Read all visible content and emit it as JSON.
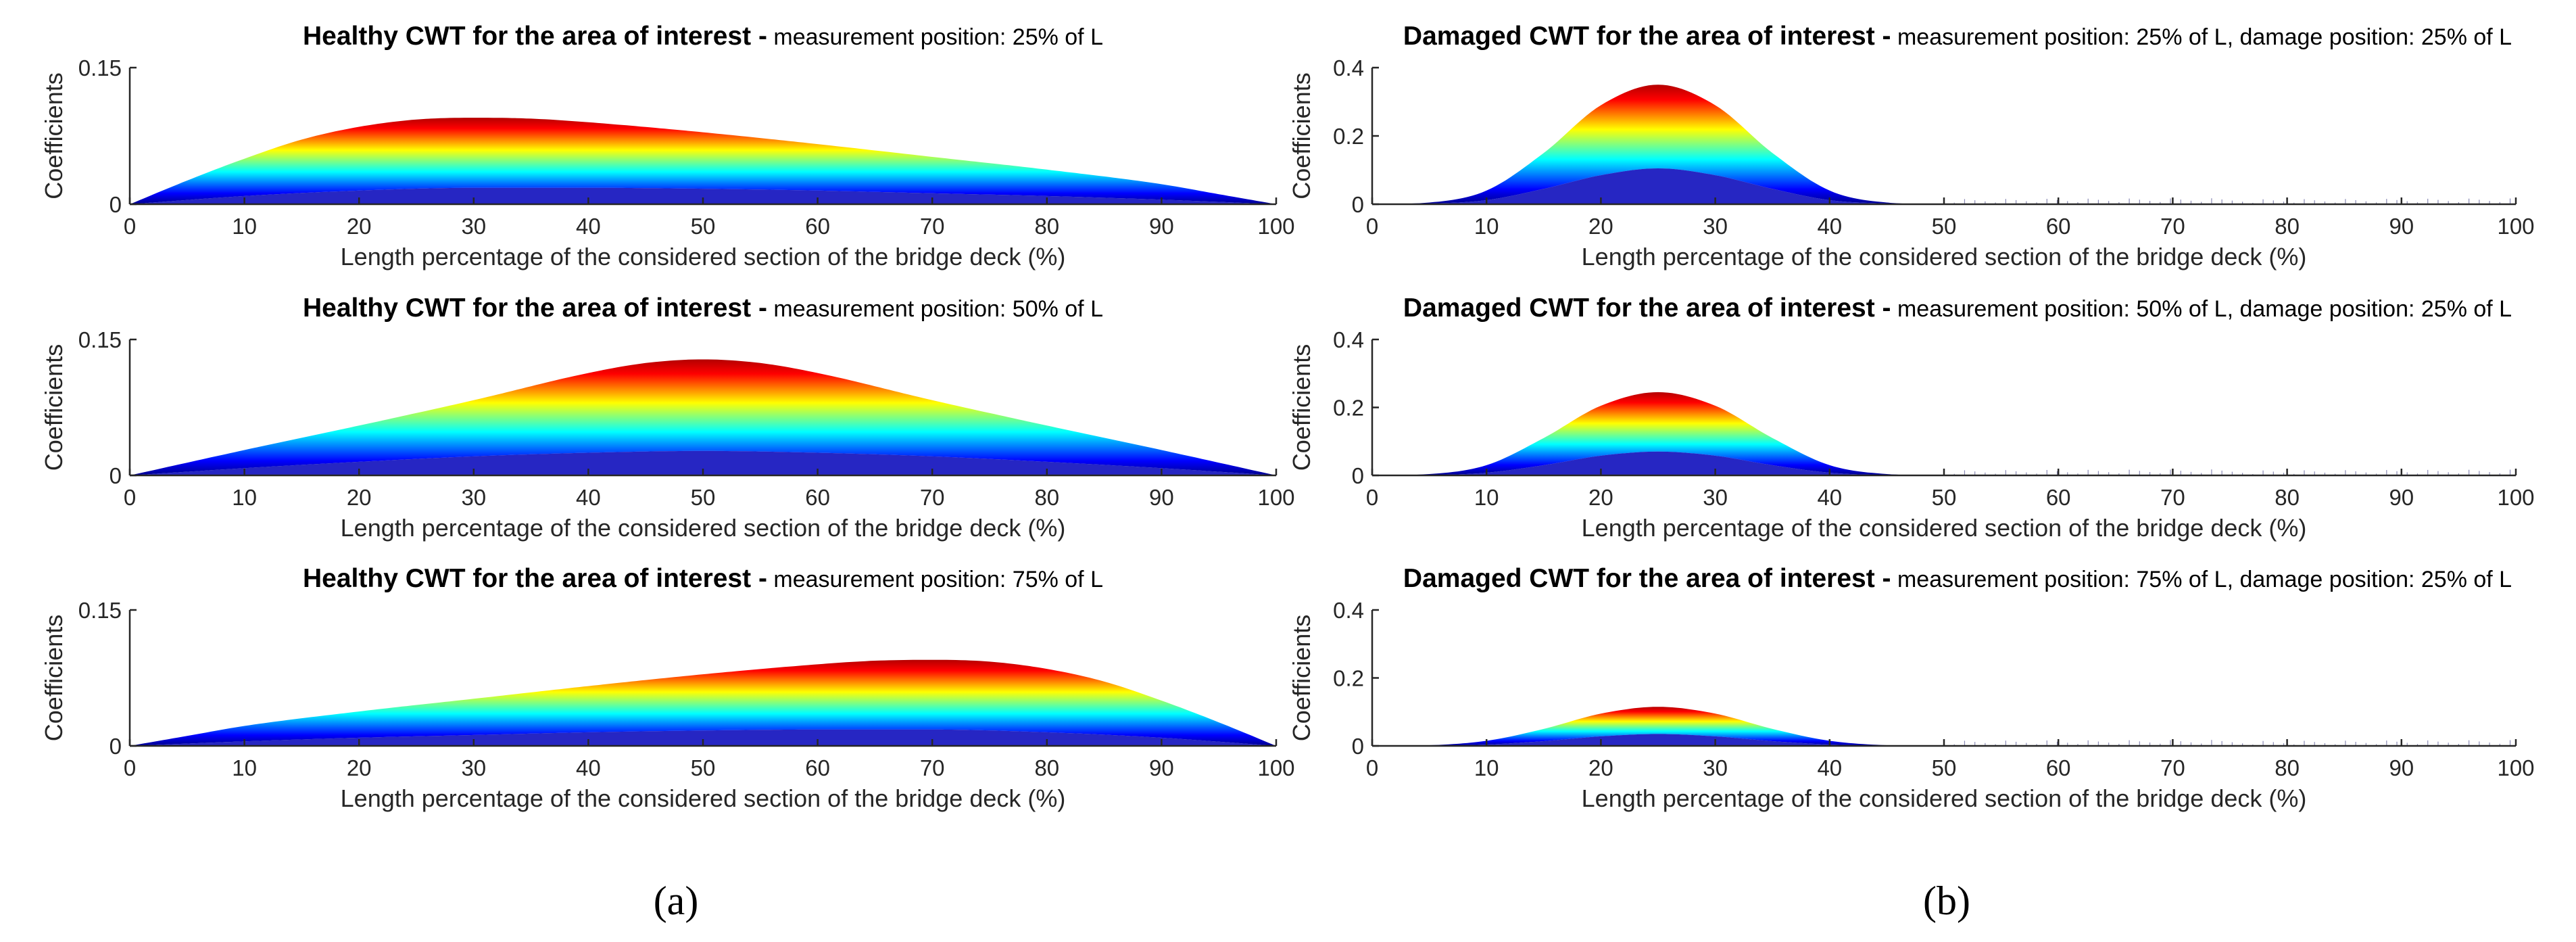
{
  "panel_labels": {
    "a": "(a)",
    "b": "(b)"
  },
  "colors": {
    "colormap": [
      "#00008f",
      "#0000ff",
      "#0080ff",
      "#00ffff",
      "#80ff80",
      "#ffff00",
      "#ff8000",
      "#ff0000",
      "#b40000"
    ],
    "axis": "#262626"
  },
  "chart_data": [
    {
      "id": "healthy-25",
      "type": "area",
      "title": "Healthy CWT for the area of interest -",
      "subtitle": "measurement position: 25% of L",
      "xlabel": "Length percentage of the considered section of the bridge deck (%)",
      "ylabel": "Coefficients",
      "xlim": [
        0,
        100
      ],
      "ylim": [
        0,
        0.15
      ],
      "xticks": [
        0,
        10,
        20,
        30,
        40,
        50,
        60,
        70,
        80,
        90,
        100
      ],
      "xtick_labels": [
        "0",
        "10",
        "20",
        "30",
        "40",
        "50",
        "60",
        "70",
        "80",
        "90",
        "100"
      ],
      "yticks": [
        0,
        0.15
      ],
      "ytick_labels": [
        "0",
        "0.15"
      ],
      "series": [
        {
          "name": "upper envelope",
          "x": [
            0,
            5,
            10,
            15,
            20,
            25,
            30,
            35,
            40,
            50,
            60,
            70,
            80,
            90,
            95,
            100
          ],
          "values": [
            0,
            0.026,
            0.05,
            0.071,
            0.085,
            0.093,
            0.095,
            0.094,
            0.09,
            0.079,
            0.066,
            0.052,
            0.038,
            0.022,
            0.011,
            0
          ]
        },
        {
          "name": "lower envelope",
          "x": [
            0,
            10,
            20,
            30,
            40,
            50,
            60,
            70,
            80,
            90,
            100
          ],
          "values": [
            0,
            0.009,
            0.015,
            0.018,
            0.018,
            0.017,
            0.015,
            0.012,
            0.009,
            0.005,
            0
          ]
        }
      ]
    },
    {
      "id": "healthy-50",
      "type": "area",
      "title": "Healthy CWT for the area of interest -",
      "subtitle": "measurement position: 50% of L",
      "xlabel": "Length percentage of the considered section of the bridge deck (%)",
      "ylabel": "Coefficients",
      "xlim": [
        0,
        100
      ],
      "ylim": [
        0,
        0.15
      ],
      "xticks": [
        0,
        10,
        20,
        30,
        40,
        50,
        60,
        70,
        80,
        90,
        100
      ],
      "xtick_labels": [
        "0",
        "10",
        "20",
        "30",
        "40",
        "50",
        "60",
        "70",
        "80",
        "90",
        "100"
      ],
      "yticks": [
        0,
        0.15
      ],
      "ytick_labels": [
        "0",
        "0.15"
      ],
      "series": [
        {
          "name": "upper envelope",
          "x": [
            0,
            10,
            20,
            30,
            40,
            45,
            50,
            55,
            60,
            70,
            80,
            90,
            100
          ],
          "values": [
            0,
            0.028,
            0.055,
            0.083,
            0.113,
            0.124,
            0.128,
            0.124,
            0.113,
            0.083,
            0.055,
            0.028,
            0
          ]
        },
        {
          "name": "lower envelope",
          "x": [
            0,
            10,
            20,
            30,
            40,
            50,
            60,
            70,
            80,
            90,
            100
          ],
          "values": [
            0,
            0.008,
            0.015,
            0.021,
            0.025,
            0.027,
            0.025,
            0.021,
            0.015,
            0.008,
            0
          ]
        }
      ]
    },
    {
      "id": "healthy-75",
      "type": "area",
      "title": "Healthy CWT for the area of interest -",
      "subtitle": "measurement position: 75% of L",
      "xlabel": "Length percentage of the considered section of the bridge deck (%)",
      "ylabel": "Coefficients",
      "xlim": [
        0,
        100
      ],
      "ylim": [
        0,
        0.15
      ],
      "xticks": [
        0,
        10,
        20,
        30,
        40,
        50,
        60,
        70,
        80,
        90,
        100
      ],
      "xtick_labels": [
        "0",
        "10",
        "20",
        "30",
        "40",
        "50",
        "60",
        "70",
        "80",
        "90",
        "100"
      ],
      "yticks": [
        0,
        0.15
      ],
      "ytick_labels": [
        "0",
        "0.15"
      ],
      "series": [
        {
          "name": "upper envelope",
          "x": [
            0,
            5,
            10,
            20,
            30,
            40,
            50,
            60,
            65,
            70,
            75,
            80,
            85,
            90,
            95,
            100
          ],
          "values": [
            0,
            0.011,
            0.022,
            0.038,
            0.052,
            0.066,
            0.079,
            0.09,
            0.094,
            0.095,
            0.093,
            0.085,
            0.071,
            0.05,
            0.026,
            0
          ]
        },
        {
          "name": "lower envelope",
          "x": [
            0,
            10,
            20,
            30,
            40,
            50,
            60,
            70,
            80,
            90,
            100
          ],
          "values": [
            0,
            0.005,
            0.009,
            0.012,
            0.015,
            0.017,
            0.018,
            0.018,
            0.015,
            0.009,
            0
          ]
        }
      ]
    },
    {
      "id": "damaged-25",
      "type": "area",
      "title": "Damaged CWT for the area of interest -",
      "subtitle": "measurement position: 25% of L, damage position: 25% of L",
      "xlabel": "Length percentage of the considered section of the bridge deck (%)",
      "ylabel": "Coefficients",
      "xlim": [
        0,
        100
      ],
      "ylim": [
        0,
        0.4
      ],
      "xticks": [
        0,
        10,
        20,
        30,
        40,
        50,
        60,
        70,
        80,
        90,
        100
      ],
      "xtick_labels": [
        "0",
        "10",
        "20",
        "30",
        "40",
        "50",
        "60",
        "70",
        "80",
        "90",
        "100"
      ],
      "yticks": [
        0,
        0.2,
        0.4
      ],
      "ytick_labels": [
        "0",
        "0.2",
        "0.4"
      ],
      "series": [
        {
          "name": "upper envelope",
          "x": [
            0,
            5,
            10,
            15,
            20,
            25,
            30,
            35,
            40,
            45,
            50,
            100
          ],
          "values": [
            0,
            0.005,
            0.04,
            0.15,
            0.29,
            0.35,
            0.29,
            0.15,
            0.04,
            0.005,
            0,
            0
          ]
        },
        {
          "name": "lower envelope",
          "x": [
            0,
            5,
            10,
            15,
            20,
            25,
            30,
            35,
            40,
            45,
            50,
            100
          ],
          "values": [
            0,
            0.002,
            0.012,
            0.045,
            0.085,
            0.105,
            0.085,
            0.045,
            0.012,
            0.002,
            0,
            0
          ]
        }
      ]
    },
    {
      "id": "damaged-50",
      "type": "area",
      "title": "Damaged CWT for the area of interest -",
      "subtitle": "measurement position: 50% of L, damage position: 25% of L",
      "xlabel": "Length percentage of the considered section of the bridge deck (%)",
      "ylabel": "Coefficients",
      "xlim": [
        0,
        100
      ],
      "ylim": [
        0,
        0.4
      ],
      "xticks": [
        0,
        10,
        20,
        30,
        40,
        50,
        60,
        70,
        80,
        90,
        100
      ],
      "xtick_labels": [
        "0",
        "10",
        "20",
        "30",
        "40",
        "50",
        "60",
        "70",
        "80",
        "90",
        "100"
      ],
      "yticks": [
        0,
        0.2,
        0.4
      ],
      "ytick_labels": [
        "0",
        "0.2",
        "0.4"
      ],
      "series": [
        {
          "name": "upper envelope",
          "x": [
            0,
            5,
            10,
            15,
            20,
            25,
            30,
            35,
            40,
            45,
            50,
            100
          ],
          "values": [
            0,
            0.004,
            0.03,
            0.11,
            0.205,
            0.245,
            0.205,
            0.11,
            0.03,
            0.004,
            0,
            0
          ]
        },
        {
          "name": "lower envelope",
          "x": [
            0,
            5,
            10,
            15,
            20,
            25,
            30,
            35,
            40,
            45,
            50,
            100
          ],
          "values": [
            0,
            0.001,
            0.008,
            0.03,
            0.058,
            0.07,
            0.058,
            0.03,
            0.008,
            0.001,
            0,
            0
          ]
        }
      ]
    },
    {
      "id": "damaged-75",
      "type": "area",
      "title": "Damaged CWT for the area of interest -",
      "subtitle": "measurement position: 75% of L, damage position: 25% of L",
      "xlabel": "Length percentage of the considered section of the bridge deck (%)",
      "ylabel": "Coefficients",
      "xlim": [
        0,
        100
      ],
      "ylim": [
        0,
        0.4
      ],
      "xticks": [
        0,
        10,
        20,
        30,
        40,
        50,
        60,
        70,
        80,
        90,
        100
      ],
      "xtick_labels": [
        "0",
        "10",
        "20",
        "30",
        "40",
        "50",
        "60",
        "70",
        "80",
        "90",
        "100"
      ],
      "yticks": [
        0,
        0.2,
        0.4
      ],
      "ytick_labels": [
        "0",
        "0.2",
        "0.4"
      ],
      "series": [
        {
          "name": "upper envelope",
          "x": [
            0,
            5,
            10,
            15,
            20,
            25,
            30,
            35,
            40,
            45,
            50,
            100
          ],
          "values": [
            0,
            0.002,
            0.015,
            0.05,
            0.095,
            0.115,
            0.095,
            0.05,
            0.015,
            0.002,
            0,
            0
          ]
        },
        {
          "name": "lower envelope",
          "x": [
            0,
            5,
            10,
            15,
            20,
            25,
            30,
            35,
            40,
            45,
            50,
            100
          ],
          "values": [
            0,
            0.001,
            0.004,
            0.014,
            0.028,
            0.035,
            0.028,
            0.014,
            0.004,
            0.001,
            0,
            0
          ]
        }
      ]
    }
  ]
}
